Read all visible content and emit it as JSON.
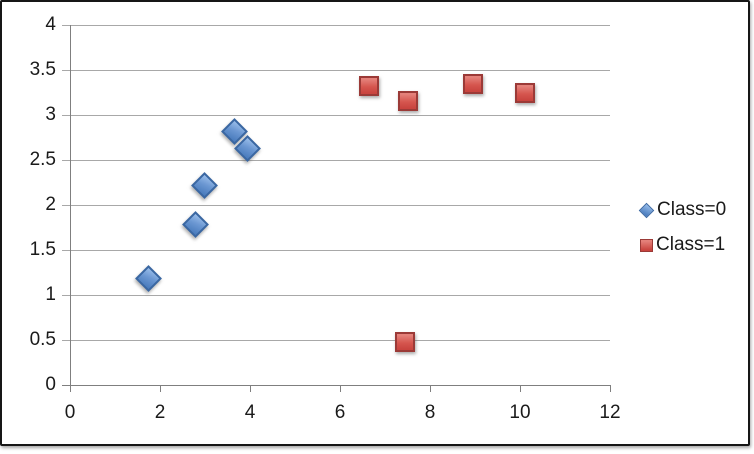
{
  "chart_data": {
    "type": "scatter",
    "title": "",
    "xlabel": "",
    "ylabel": "",
    "xlim": [
      0,
      12
    ],
    "ylim": [
      0,
      4
    ],
    "x_ticks": [
      0,
      2,
      4,
      6,
      8,
      10,
      12
    ],
    "y_ticks": [
      0,
      0.5,
      1,
      1.5,
      2,
      2.5,
      3,
      3.5,
      4
    ],
    "grid": "horizontal-on",
    "legend_position": "right",
    "series": [
      {
        "name": "Class=0",
        "marker": "diamond",
        "fill_color": "#6b97d2",
        "border_color": "#3a67a2",
        "points": [
          [
            1.75,
            1.18
          ],
          [
            2.8,
            1.78
          ],
          [
            3.0,
            2.21
          ],
          [
            3.67,
            2.81
          ],
          [
            3.95,
            2.62
          ]
        ]
      },
      {
        "name": "Class=1",
        "marker": "square",
        "fill_color": "#d6564f",
        "border_color": "#9b3a37",
        "points": [
          [
            6.64,
            3.32
          ],
          [
            7.5,
            3.16
          ],
          [
            8.96,
            3.34
          ],
          [
            10.1,
            3.24
          ],
          [
            7.45,
            0.48
          ]
        ]
      }
    ],
    "colors": {
      "gridline": "#a8a8a8",
      "axis": "#7f7f7f",
      "tick_text": "#1a1a1a",
      "frame_border": "#161616",
      "background": "#ffffff"
    }
  },
  "legend": {
    "items": [
      {
        "label": "Class=0"
      },
      {
        "label": "Class=1"
      }
    ]
  }
}
